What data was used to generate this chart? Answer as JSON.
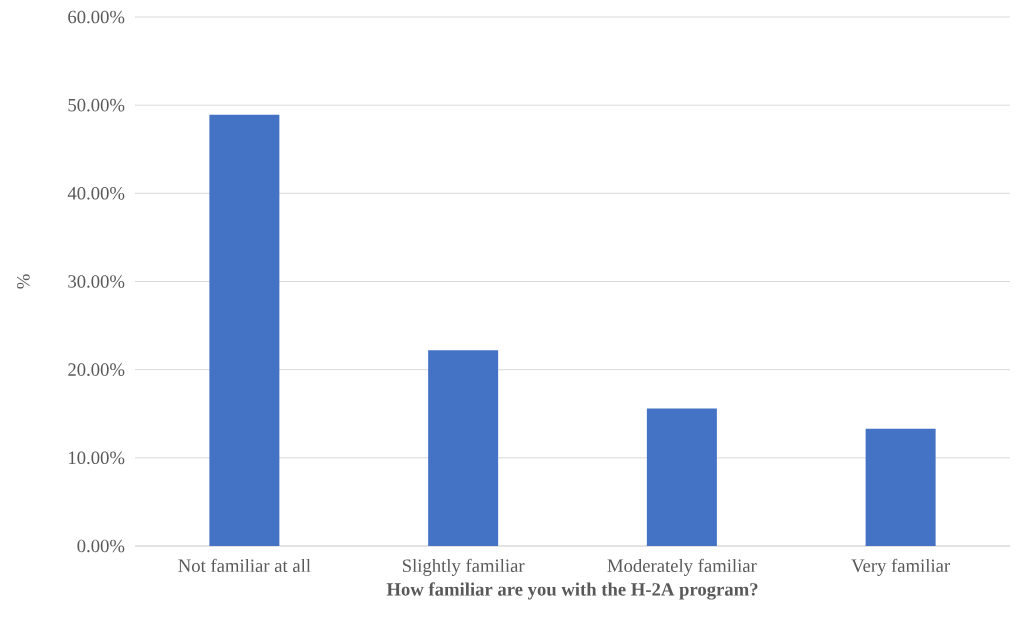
{
  "chart_data": {
    "type": "bar",
    "xlabel": "How familiar are you with the H-2A program?",
    "ylabel": "%",
    "categories": [
      "Not familiar at all",
      "Slightly familiar",
      "Moderately familiar",
      "Very familiar"
    ],
    "values": [
      48.9,
      22.2,
      15.6,
      13.3
    ],
    "color": "#4472c4",
    "ylim": [
      0,
      60
    ],
    "yticks": [
      {
        "value": 0,
        "label": "0.00%"
      },
      {
        "value": 10,
        "label": "10.00%"
      },
      {
        "value": 20,
        "label": "20.00%"
      },
      {
        "value": 30,
        "label": "30.00%"
      },
      {
        "value": 40,
        "label": "40.00%"
      },
      {
        "value": 50,
        "label": "50.00%"
      },
      {
        "value": 60,
        "label": "60.00%"
      }
    ],
    "grid": "y"
  }
}
